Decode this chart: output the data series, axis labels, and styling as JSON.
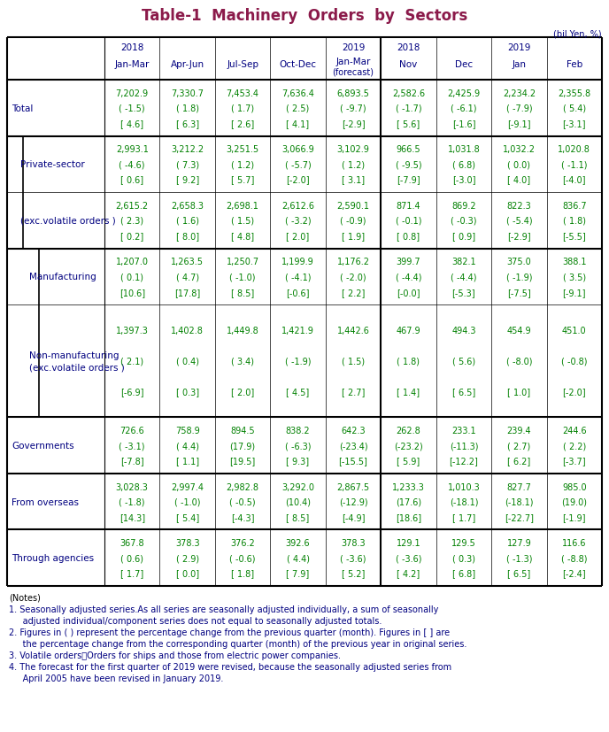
{
  "title": "Table-1  Machinery  Orders  by  Sectors",
  "title_color": "#8B1A4A",
  "unit_label": "(bil.Yen, %)",
  "col_label_color": "#000080",
  "data_color": "#008000",
  "row_label_color": "#000080",
  "note_color": "#000080",
  "year_labels": [
    "2018",
    "",
    "",
    "",
    "2019",
    "2018",
    "",
    "2019",
    ""
  ],
  "period_labels": [
    "Jan-Mar",
    "Apr-Jun",
    "Jul-Sep",
    "Oct-Dec",
    "Jan-Mar\n(forecast)",
    "Nov",
    "Dec",
    "Jan",
    "Feb"
  ],
  "rows": [
    {
      "label": "Total",
      "indent": 0,
      "thick_top": true,
      "thick_left": false,
      "values": [
        [
          "7,202.9",
          "( -1.5)",
          "[ 4.6]"
        ],
        [
          "7,330.7",
          "( 1.8)",
          "[ 6.3]"
        ],
        [
          "7,453.4",
          "( 1.7)",
          "[ 2.6]"
        ],
        [
          "7,636.4",
          "( 2.5)",
          "[ 4.1]"
        ],
        [
          "6,893.5",
          "( -9.7)",
          "[-2.9]"
        ],
        [
          "2,582.6",
          "( -1.7)",
          "[ 5.6]"
        ],
        [
          "2,425.9",
          "( -6.1)",
          "[-1.6]"
        ],
        [
          "2,234.2",
          "( -7.9)",
          "[-9.1]"
        ],
        [
          "2,355.8",
          "( 5.4)",
          "[-3.1]"
        ]
      ]
    },
    {
      "label": "Private-sector",
      "indent": 1,
      "thick_top": true,
      "thick_left": true,
      "values": [
        [
          "2,993.1",
          "( -4.6)",
          "[ 0.6]"
        ],
        [
          "3,212.2",
          "( 7.3)",
          "[ 9.2]"
        ],
        [
          "3,251.5",
          "( 1.2)",
          "[ 5.7]"
        ],
        [
          "3,066.9",
          "( -5.7)",
          "[-2.0]"
        ],
        [
          "3,102.9",
          "( 1.2)",
          "[ 3.1]"
        ],
        [
          "966.5",
          "( -9.5)",
          "[-7.9]"
        ],
        [
          "1,031.8",
          "( 6.8)",
          "[-3.0]"
        ],
        [
          "1,032.2",
          "( 0.0)",
          "[ 4.0]"
        ],
        [
          "1,020.8",
          "( -1.1)",
          "[-4.0]"
        ]
      ]
    },
    {
      "label": "(exc.volatile orders )",
      "indent": 1,
      "thick_top": false,
      "thick_left": true,
      "values": [
        [
          "2,615.2",
          "( 2.3)",
          "[ 0.2]"
        ],
        [
          "2,658.3",
          "( 1.6)",
          "[ 8.0]"
        ],
        [
          "2,698.1",
          "( 1.5)",
          "[ 4.8]"
        ],
        [
          "2,612.6",
          "( -3.2)",
          "[ 2.0]"
        ],
        [
          "2,590.1",
          "( -0.9)",
          "[ 1.9]"
        ],
        [
          "871.4",
          "( -0.1)",
          "[ 0.8]"
        ],
        [
          "869.2",
          "( -0.3)",
          "[ 0.9]"
        ],
        [
          "822.3",
          "( -5.4)",
          "[-2.9]"
        ],
        [
          "836.7",
          "( 1.8)",
          "[-5.5]"
        ]
      ]
    },
    {
      "label": "Manufacturing",
      "indent": 2,
      "thick_top": true,
      "thick_left": true,
      "values": [
        [
          "1,207.0",
          "( 0.1)",
          "[10.6]"
        ],
        [
          "1,263.5",
          "( 4.7)",
          "[17.8]"
        ],
        [
          "1,250.7",
          "( -1.0)",
          "[ 8.5]"
        ],
        [
          "1,199.9",
          "( -4.1)",
          "[-0.6]"
        ],
        [
          "1,176.2",
          "( -2.0)",
          "[ 2.2]"
        ],
        [
          "399.7",
          "( -4.4)",
          "[-0.0]"
        ],
        [
          "382.1",
          "( -4.4)",
          "[-5.3]"
        ],
        [
          "375.0",
          "( -1.9)",
          "[-7.5]"
        ],
        [
          "388.1",
          "( 3.5)",
          "[-9.1]"
        ]
      ]
    },
    {
      "label": "Non-manufacturing\n(exc.volatile orders )",
      "indent": 2,
      "thick_top": false,
      "thick_left": true,
      "values": [
        [
          "1,397.3",
          "( 2.1)",
          "[-6.9]"
        ],
        [
          "1,402.8",
          "( 0.4)",
          "[ 0.3]"
        ],
        [
          "1,449.8",
          "( 3.4)",
          "[ 2.0]"
        ],
        [
          "1,421.9",
          "( -1.9)",
          "[ 4.5]"
        ],
        [
          "1,442.6",
          "( 1.5)",
          "[ 2.7]"
        ],
        [
          "467.9",
          "( 1.8)",
          "[ 1.4]"
        ],
        [
          "494.3",
          "( 5.6)",
          "[ 6.5]"
        ],
        [
          "454.9",
          "( -8.0)",
          "[ 1.0]"
        ],
        [
          "451.0",
          "( -0.8)",
          "[-2.0]"
        ]
      ]
    },
    {
      "label": "Governments",
      "indent": 0,
      "thick_top": true,
      "thick_left": false,
      "values": [
        [
          "726.6",
          "( -3.1)",
          "[-7.8]"
        ],
        [
          "758.9",
          "( 4.4)",
          "[ 1.1]"
        ],
        [
          "894.5",
          "(17.9)",
          "[19.5]"
        ],
        [
          "838.2",
          "( -6.3)",
          "[ 9.3]"
        ],
        [
          "642.3",
          "(-23.4)",
          "[-15.5]"
        ],
        [
          "262.8",
          "(-23.2)",
          "[ 5.9]"
        ],
        [
          "233.1",
          "(-11.3)",
          "[-12.2]"
        ],
        [
          "239.4",
          "( 2.7)",
          "[ 6.2]"
        ],
        [
          "244.6",
          "( 2.2)",
          "[-3.7]"
        ]
      ]
    },
    {
      "label": "From overseas",
      "indent": 0,
      "thick_top": true,
      "thick_left": false,
      "values": [
        [
          "3,028.3",
          "( -1.8)",
          "[14.3]"
        ],
        [
          "2,997.4",
          "( -1.0)",
          "[ 5.4]"
        ],
        [
          "2,982.8",
          "( -0.5)",
          "[-4.3]"
        ],
        [
          "3,292.0",
          "(10.4)",
          "[ 8.5]"
        ],
        [
          "2,867.5",
          "(-12.9)",
          "[-4.9]"
        ],
        [
          "1,233.3",
          "(17.6)",
          "[18.6]"
        ],
        [
          "1,010.3",
          "(-18.1)",
          "[ 1.7]"
        ],
        [
          "827.7",
          "(-18.1)",
          "[-22.7]"
        ],
        [
          "985.0",
          "(19.0)",
          "[-1.9]"
        ]
      ]
    },
    {
      "label": "Through agencies",
      "indent": 0,
      "thick_top": true,
      "thick_left": false,
      "values": [
        [
          "367.8",
          "( 0.6)",
          "[ 1.7]"
        ],
        [
          "378.3",
          "( 2.9)",
          "[ 0.0]"
        ],
        [
          "376.2",
          "( -0.6)",
          "[ 1.8]"
        ],
        [
          "392.6",
          "( 4.4)",
          "[ 7.9]"
        ],
        [
          "378.3",
          "( -3.6)",
          "[ 5.2]"
        ],
        [
          "129.1",
          "( -3.6)",
          "[ 4.2]"
        ],
        [
          "129.5",
          "( 0.3)",
          "[ 6.8]"
        ],
        [
          "127.9",
          "( -1.3)",
          "[ 6.5]"
        ],
        [
          "116.6",
          "( -8.8)",
          "[-2.4]"
        ]
      ]
    }
  ],
  "notes": [
    "(Notes)",
    "1. Seasonally adjusted series.As all series are seasonally adjusted individually, a sum of seasonally",
    "     adjusted individual/component series does not equal to seasonally adjusted totals.",
    "2. Figures in ( ) represent the percentage change from the previous quarter (month). Figures in [ ] are",
    "     the percentage change from the corresponding quarter (month) of the previous year in original series.",
    "3. Volatile orders：Orders for ships and those from electric power companies.",
    "4. The forecast for the first quarter of 2019 were revised, because the seasonally adjusted series from",
    "     April 2005 have been revised in January 2019."
  ]
}
